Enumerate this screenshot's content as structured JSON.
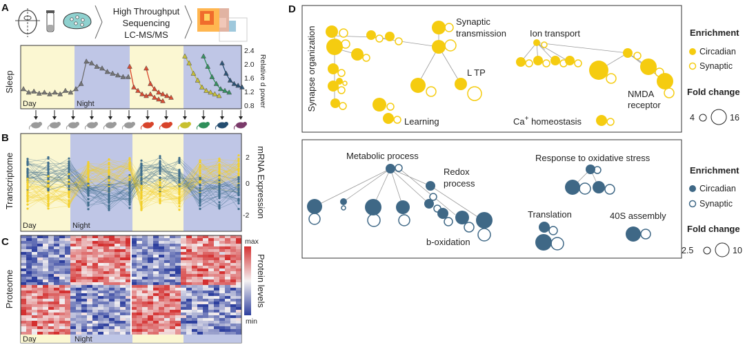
{
  "panels": {
    "a": "A",
    "b": "B",
    "c": "C",
    "d": "D"
  },
  "panel_a": {
    "workflow_text_1": "High Throughput",
    "workflow_text_2": "Sequencing",
    "workflow_text_3": "LC-MS/MS",
    "row_label": "Sleep",
    "right_axis_label": "Relative d power",
    "day_label": "Day",
    "night_label": "Night",
    "ticks": [
      "2.4",
      "2.0",
      "1.6",
      "1.2",
      "0.8"
    ],
    "series_colors": {
      "baseline": "#707070",
      "red": "#d8432a",
      "yellow": "#c8c030",
      "green": "#2f8f5a",
      "navy": "#244d70"
    },
    "sleep_series": [
      {
        "color": "#707070",
        "values": [
          1.35,
          1.25,
          1.28,
          1.22,
          1.25,
          1.2,
          1.25,
          1.2,
          1.3,
          1.25,
          1.35,
          1.5,
          2.15,
          2.1,
          2.0,
          1.95,
          1.85,
          1.8,
          1.75,
          1.7,
          1.7
        ]
      },
      {
        "color": "#d8432a",
        "values": [
          2.0,
          1.4,
          1.3,
          1.2,
          1.15,
          1.2,
          1.1,
          1.05,
          1.0
        ]
      },
      {
        "color": "#d8432a",
        "values": [
          1.95,
          1.5,
          1.35,
          1.25,
          1.2,
          1.15,
          1.1
        ]
      },
      {
        "color": "#c8c030",
        "values": [
          2.3,
          2.1,
          1.8,
          1.6,
          1.4,
          1.3,
          1.25,
          1.2,
          1.15
        ]
      },
      {
        "color": "#2f8f5a",
        "values": [
          2.3,
          2.0,
          1.7,
          1.5,
          1.35,
          1.3,
          1.25
        ]
      },
      {
        "color": "#244d70",
        "values": [
          2.1,
          1.8,
          1.6,
          1.5,
          1.45,
          1.4
        ]
      }
    ]
  },
  "panel_b": {
    "row_label": "Transcriptome",
    "right_axis_label": "mRNA Expression",
    "day_label": "Day",
    "night_label": "Night",
    "ticks": [
      "2",
      "0",
      "-2"
    ],
    "colors": {
      "circadian": "#f2cf2a",
      "synaptic": "#3f6d8c"
    }
  },
  "panel_c": {
    "row_label": "Proteome",
    "right_axis_label": "Protein levels",
    "max_label": "max",
    "min_label": "min",
    "day_label": "Day",
    "night_label": "Night",
    "colors": {
      "high": "#d43030",
      "mid": "#f4f1f2",
      "low": "#2d3f9e"
    }
  },
  "panel_d_top": {
    "labels": {
      "synapse_org": "Synapse organization",
      "synaptic_1": "Synaptic",
      "synaptic_2": "transmission",
      "ion": "Ion transport",
      "ltp": "L TP",
      "learning": "Learning",
      "nmda_1": "NMDA",
      "nmda_2": "receptor",
      "ca_1": "Ca",
      "ca_sup": "+",
      "ca_2": " homeostasis"
    },
    "legend": {
      "enrichment": "Enrichment",
      "circadian": "Circadian",
      "synaptic": "Synaptic",
      "fold_change": "Fold change",
      "fc_low": "4",
      "fc_high": "16"
    },
    "color": "#f5cc10"
  },
  "panel_d_bottom": {
    "labels": {
      "metabolic": "Metabolic process",
      "redox_1": "Redox",
      "redox_2": "process",
      "oxidative": "Response to oxidative stress",
      "translation": "Translation",
      "s40": "40S assembly",
      "boxidation": "b-oxidation"
    },
    "legend": {
      "enrichment": "Enrichment",
      "circadian": "Circadian",
      "synaptic": "Synaptic",
      "fold_change": "Fold change",
      "fc_low": "2.5",
      "fc_high": "10"
    },
    "color": "#3f6886"
  },
  "colors": {
    "day_bg": "#fbf7d2",
    "night_bg": "#bfc6e6",
    "box_border": "#333333"
  }
}
